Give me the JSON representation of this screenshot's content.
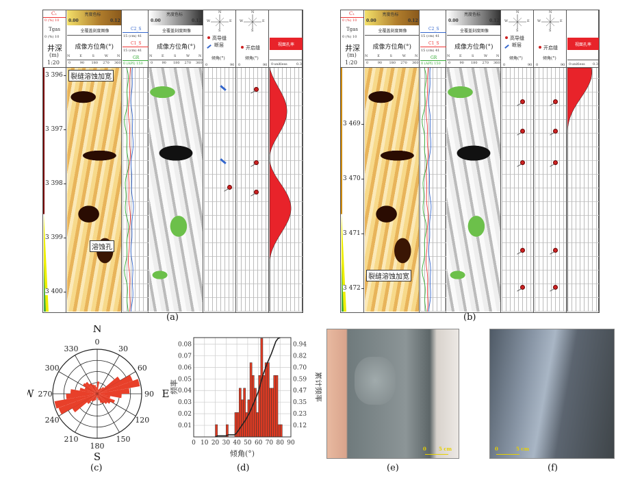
{
  "logs": [
    {
      "id": "a",
      "caption": "(a)",
      "header": {
        "c1": "C₁",
        "c1_scale": "0   (%)   10",
        "tgas": "Tgas",
        "tgas_scale": "0   (%)   10",
        "depth_title": "井深",
        "depth_unit": "(m)",
        "depth_scale": "1:20",
        "colorbar_title": "亮度色标",
        "colorbar_min": "0.00",
        "colorbar_max": "0.12",
        "image_title": "全覆盖刻度图像",
        "azimuth_title": "成像方位角(°)",
        "azimuth_dirs": [
          "N",
          "E",
          "S",
          "W",
          "N"
        ],
        "azimuth_ticks": [
          "0",
          "90",
          "180",
          "270",
          "360"
        ],
        "c2s": "C2_S",
        "c2s_scale": "15  (cm)  41",
        "c1s": "C1_S",
        "c1s_scale": "15  (cm)  41",
        "gr": "GR",
        "gr_scale": "0  (API)  150",
        "compass": [
          "N",
          "E",
          "S",
          "W"
        ],
        "legend_hc": "高导缝",
        "legend_fault": "断层",
        "legend_open": "开启缝",
        "dip_title": "倾角(°)",
        "dip_scale": [
          "0",
          "90"
        ],
        "porosity_title": "视面孔率",
        "porosity_scale": [
          "0",
          "unitless",
          "0.3"
        ]
      },
      "depths": [
        "3 396",
        "3 397",
        "3 398",
        "3 399",
        "3 400"
      ],
      "annotations": [
        "裂缝溶蚀加宽",
        "溶蚀孔"
      ],
      "faults": [
        0.08,
        0.38
      ],
      "open_left": [
        0.48
      ],
      "open_right": [
        0.08,
        0.38,
        0.5
      ]
    },
    {
      "id": "b",
      "caption": "(b)",
      "header": {
        "c1": "C₁",
        "c1_scale": "0   (%)   10",
        "tgas": "Tgas",
        "tgas_scale": "0   (%)   10",
        "depth_title": "井深",
        "depth_unit": "(m)",
        "depth_scale": "1:20",
        "colorbar_title": "亮度色标",
        "colorbar_min": "0.00",
        "colorbar_max": "0.12",
        "image_title": "全覆盖刻度图像",
        "azimuth_title": "成像方位角(°)",
        "azimuth_dirs": [
          "N",
          "E",
          "S",
          "W",
          "N"
        ],
        "azimuth_ticks": [
          "0",
          "90",
          "180",
          "270",
          "360"
        ],
        "c2s": "C2_S",
        "c2s_scale": "15  (cm)  41",
        "c1s": "C1_S",
        "c1s_scale": "15  (cm)  41",
        "gr": "GR",
        "gr_scale": "0  (API)  150",
        "compass": [
          "N",
          "E",
          "S",
          "W"
        ],
        "legend_hc": "高导缝",
        "legend_fault": "断层",
        "legend_open": "开启缝",
        "dip_title": "倾角(°)",
        "dip_scale": [
          "0",
          "90"
        ],
        "porosity_title": "视面孔率",
        "porosity_scale": [
          "0",
          "unitless",
          "0.3"
        ]
      },
      "depths": [
        "3 469",
        "3 470",
        "3 471",
        "3 472"
      ],
      "annotations": [
        "裂缝溶蚀加宽"
      ],
      "faults": [],
      "open_left": [
        0.13,
        0.25,
        0.38,
        0.74,
        0.89
      ],
      "open_right": [
        0.13,
        0.25,
        0.38,
        0.74,
        0.89
      ]
    }
  ],
  "rose": {
    "caption": "(c)",
    "cardinals": [
      "N",
      "E",
      "S",
      "W"
    ],
    "angle_labels": [
      "0",
      "30",
      "60",
      "90",
      "120",
      "150",
      "180",
      "210",
      "240",
      "270",
      "300",
      "330"
    ],
    "bin_deg": 10,
    "rings": 4,
    "values": [
      1.1,
      0.4,
      0.5,
      0.6,
      0.8,
      2.4,
      3.4,
      3.9,
      2.9,
      2.2,
      1.2,
      1.7,
      1.4,
      1.2,
      1.0,
      0.9,
      0.6,
      0.4,
      0.3,
      0.6,
      0.7,
      0.8,
      1.2,
      2.6,
      3.7,
      3.9,
      2.8,
      2.4,
      1.6,
      1.2,
      1.5,
      1.4,
      1.1,
      0.9,
      0.8,
      0.6
    ]
  },
  "chart_data": {
    "type": "bar",
    "caption": "(d)",
    "xlabel": "倾角(°)",
    "ylabel": "频率",
    "y2label": "累计频率",
    "xlim": [
      0,
      90
    ],
    "ylim": [
      0,
      0.0856
    ],
    "x_ticks": [
      "0",
      "10",
      "20",
      "30",
      "40",
      "50",
      "60",
      "70",
      "80",
      "90"
    ],
    "y_ticks": [
      "0.01",
      "0.02",
      "0.03",
      "0.04",
      "0.05",
      "0.06",
      "0.07",
      "0.08"
    ],
    "y2_ticks": [
      "0.12",
      "0.23",
      "0.35",
      "0.47",
      "0.59",
      "0.70",
      "0.82",
      "0.94"
    ],
    "bin_width": 2,
    "bins": [
      20,
      30,
      38,
      40,
      42,
      44,
      46,
      48,
      50,
      52,
      54,
      56,
      58,
      60,
      62,
      64,
      66,
      68,
      70,
      72,
      74,
      76,
      78,
      80
    ],
    "values": [
      0.0106,
      0.0106,
      0.021,
      0.021,
      0.042,
      0.032,
      0.042,
      0.021,
      0.032,
      0.064,
      0.053,
      0.042,
      0.021,
      0.053,
      0.085,
      0.053,
      0.064,
      0.064,
      0.042,
      0.042,
      0.053,
      0.053,
      0.0106,
      0.0106
    ],
    "cumulative": {
      "x": [
        20,
        22,
        30,
        32,
        38,
        40,
        44,
        48,
        52,
        56,
        60,
        64,
        68,
        72,
        76,
        78,
        80
      ],
      "y": [
        0,
        0.011,
        0.011,
        0.021,
        0.021,
        0.043,
        0.106,
        0.17,
        0.25,
        0.35,
        0.46,
        0.62,
        0.74,
        0.84,
        0.96,
        0.99,
        1.0
      ]
    }
  },
  "photos": [
    {
      "caption": "(e)",
      "scale_zero": "0",
      "scale_label": "5 cm"
    },
    {
      "caption": "(f)",
      "scale_zero": "0",
      "scale_label": "5 cm"
    }
  ]
}
